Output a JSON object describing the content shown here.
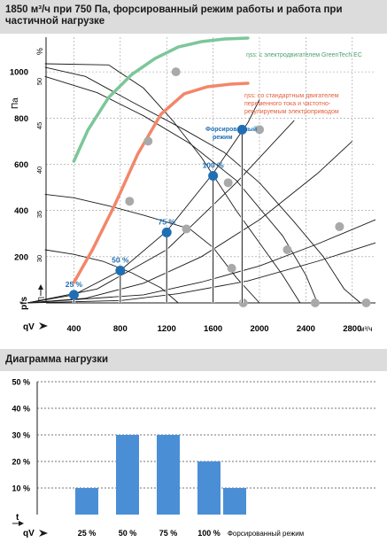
{
  "header": {
    "title_line1": "1850 м³/ч при 750 Па, форсированный режим работы и работа при",
    "title_line2": "частичной нагрузке",
    "load_title": "Диаграмма нагрузки"
  },
  "colors": {
    "bg": "#dcdcdc",
    "ec_curve": "#7cc79a",
    "ac_curve": "#f2876a",
    "point": "#1f6fb5",
    "bar": "#4a8fd6"
  },
  "chart_data": [
    {
      "type": "line",
      "xlabel": "qV",
      "x_unit": "м³/ч",
      "ylabel": "pfs",
      "y_unit": "Па",
      "y2_unit": "%",
      "y2_label": "η",
      "xticks": [
        400,
        800,
        1200,
        1600,
        2000,
        2400,
        2800
      ],
      "yticks": [
        200,
        400,
        600,
        800,
        1000
      ],
      "y2ticks": [
        30,
        35,
        40,
        45,
        50
      ],
      "xlim": [
        160,
        3000
      ],
      "ylim": [
        0,
        1150
      ],
      "y2lim": [
        25,
        55
      ],
      "grid": true,
      "annotations": {
        "ec_label": "ηss: с электродвигателем GreenTech EC",
        "ac_label_1": "ηss: со стандартным двигателем",
        "ac_label_2": "переменного тока и частотно-",
        "ac_label_3": "регулируемым электроприводом",
        "boost_1": "Форсированный",
        "boost_2": "режим"
      },
      "series": [
        {
          "name": "ηss: с электродвигателем GreenTech EC",
          "x": [
            400,
            520,
            700,
            900,
            1100,
            1300,
            1500,
            1700,
            1900
          ],
          "y2": [
            41,
            44.5,
            48.2,
            50.8,
            52.6,
            53.9,
            54.5,
            54.8,
            54.9
          ]
        },
        {
          "name": "ηss: со стандартным двигателем переменного тока и частотно-регулируемым электроприводом",
          "x": [
            400,
            560,
            750,
            950,
            1150,
            1350,
            1550,
            1750,
            1900
          ],
          "y2": [
            27.3,
            31,
            36,
            41.8,
            46.3,
            48.6,
            49.4,
            49.7,
            49.8
          ]
        }
      ],
      "fan_curves": [
        [
          [
            150,
            1035
          ],
          [
            700,
            1030
          ],
          [
            1000,
            930
          ],
          [
            1250,
            790
          ],
          [
            1500,
            630
          ],
          [
            1800,
            400
          ],
          [
            2000,
            260
          ],
          [
            2200,
            120
          ],
          [
            2350,
            0
          ]
        ],
        [
          [
            150,
            1020
          ],
          [
            500,
            980
          ],
          [
            900,
            870
          ],
          [
            1350,
            750
          ],
          [
            1700,
            650
          ],
          [
            2000,
            520
          ],
          [
            2300,
            350
          ],
          [
            2550,
            200
          ],
          [
            2730,
            60
          ],
          [
            2870,
            0
          ]
        ],
        [
          [
            150,
            980
          ],
          [
            600,
            910
          ],
          [
            1000,
            810
          ],
          [
            1400,
            690
          ],
          [
            1800,
            530
          ],
          [
            2200,
            290
          ],
          [
            2400,
            120
          ],
          [
            2500,
            0
          ]
        ],
        [
          [
            150,
            470
          ],
          [
            400,
            455
          ],
          [
            700,
            420
          ],
          [
            1000,
            380
          ],
          [
            1400,
            320
          ],
          [
            1600,
            240
          ],
          [
            1800,
            110
          ],
          [
            2000,
            0
          ]
        ],
        [
          [
            150,
            230
          ],
          [
            400,
            210
          ],
          [
            650,
            180
          ],
          [
            900,
            130
          ],
          [
            1150,
            65
          ],
          [
            1300,
            0
          ]
        ]
      ],
      "system_curves": [
        [
          [
            0,
            0
          ],
          [
            400,
            35
          ],
          [
            800,
            140
          ],
          [
            1200,
            310
          ],
          [
            1600,
            560
          ],
          [
            1900,
            780
          ],
          [
            2000,
            880
          ]
        ],
        [
          [
            0,
            0
          ],
          [
            600,
            60
          ],
          [
            1200,
            230
          ],
          [
            1800,
            520
          ],
          [
            2300,
            790
          ]
        ],
        [
          [
            0,
            0
          ],
          [
            500,
            20
          ],
          [
            1000,
            85
          ],
          [
            1500,
            200
          ],
          [
            2000,
            360
          ],
          [
            2500,
            560
          ],
          [
            2800,
            700
          ]
        ],
        [
          [
            0,
            0
          ],
          [
            1000,
            35
          ],
          [
            1500,
            90
          ],
          [
            2000,
            160
          ],
          [
            2500,
            255
          ],
          [
            3000,
            360
          ]
        ],
        [
          [
            0,
            0
          ],
          [
            800,
            10
          ],
          [
            1300,
            40
          ],
          [
            1900,
            95
          ],
          [
            2500,
            180
          ],
          [
            3000,
            260
          ]
        ]
      ],
      "grey_points": [
        [
          1280,
          1000
        ],
        [
          1040,
          700
        ],
        [
          880,
          440
        ],
        [
          1370,
          320
        ],
        [
          1730,
          520
        ],
        [
          1760,
          150
        ],
        [
          2000,
          750
        ],
        [
          2240,
          230
        ],
        [
          2690,
          330
        ],
        [
          1860,
          0
        ],
        [
          2480,
          0
        ],
        [
          2920,
          0
        ]
      ],
      "operating_points": [
        {
          "label": "25 %",
          "x": 400,
          "y": 35
        },
        {
          "label": "50 %",
          "x": 800,
          "y": 140
        },
        {
          "label": "75 %",
          "x": 1200,
          "y": 305
        },
        {
          "label": "100 %",
          "x": 1600,
          "y": 550
        },
        {
          "label": "",
          "x": 1850,
          "y": 750
        }
      ]
    },
    {
      "type": "bar",
      "title": "Диаграмма нагрузки",
      "xlabel": "qV",
      "ylabel": "t",
      "categories": [
        "25 %",
        "50 %",
        "75 %",
        "100 %",
        "Форсированный режим"
      ],
      "values": [
        10,
        30,
        30,
        20,
        10
      ],
      "yticks": [
        "10 %",
        "20 %",
        "30 %",
        "40 %",
        "50 %"
      ],
      "ylim": [
        0,
        50
      ]
    }
  ]
}
